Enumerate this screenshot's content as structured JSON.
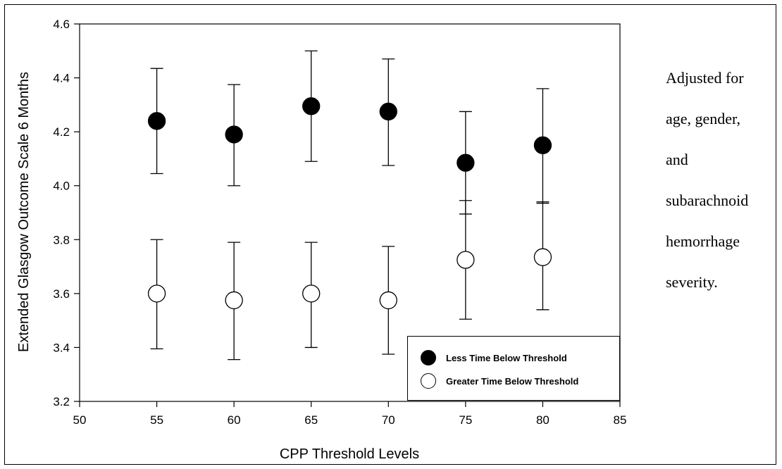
{
  "chart_data": {
    "type": "scatter",
    "xlabel": "CPP Threshold Levels",
    "ylabel": "Extended Glasgow Outcome Scale 6 Months",
    "xlim": [
      50,
      85
    ],
    "ylim": [
      3.2,
      4.6
    ],
    "x_ticks": [
      "50",
      "55",
      "60",
      "65",
      "70",
      "75",
      "80",
      "85"
    ],
    "y_ticks": [
      "3.2",
      "3.4",
      "3.6",
      "3.8",
      "4.0",
      "4.2",
      "4.4",
      "4.6"
    ],
    "legend_placement": "bottom-right",
    "series": [
      {
        "name": "Less Time Below Threshold",
        "marker": "filled-circle",
        "color": "#000000",
        "x": [
          55,
          60,
          65,
          70,
          75,
          80
        ],
        "y": [
          4.24,
          4.19,
          4.295,
          4.275,
          4.085,
          4.15
        ],
        "err_low": [
          4.045,
          4.0,
          4.09,
          4.075,
          3.895,
          3.935
        ],
        "err_high": [
          4.435,
          4.375,
          4.5,
          4.47,
          4.275,
          4.36
        ]
      },
      {
        "name": "Greater Time Below Threshold",
        "marker": "open-circle",
        "color": "#ffffff",
        "x": [
          55,
          60,
          65,
          70,
          75,
          80
        ],
        "y": [
          3.6,
          3.575,
          3.6,
          3.575,
          3.725,
          3.735
        ],
        "err_low": [
          3.395,
          3.355,
          3.4,
          3.375,
          3.505,
          3.54
        ],
        "err_high": [
          3.8,
          3.79,
          3.79,
          3.775,
          3.945,
          3.94
        ]
      }
    ]
  },
  "side_note": {
    "lines": [
      "Adjusted for",
      "age, gender,",
      "and",
      "subarachnoid",
      "hemorrhage",
      "severity."
    ]
  }
}
